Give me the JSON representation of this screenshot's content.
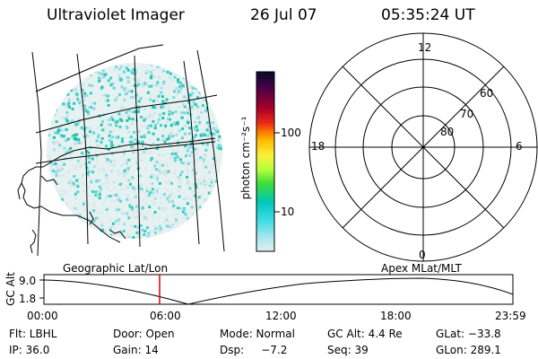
{
  "header": {
    "title": "Ultraviolet Imager",
    "date": "26 Jul 07",
    "time": "05:35:24 UT"
  },
  "colorbar": {
    "unit_label": "photon cm⁻²s⁻¹",
    "ticks": [
      "100",
      "10"
    ]
  },
  "polar_plot": {
    "mlt_labels": {
      "top": "12",
      "left": "18",
      "right": "6",
      "bottom": "0"
    },
    "lat_labels": [
      "60",
      "70",
      "80"
    ]
  },
  "timeline": {
    "left_label": "Geographic Lat/Lon",
    "right_label": "Apex MLat/MLT",
    "axis_label": "GC Alt",
    "y_ticks": [
      "9.0",
      "1.8"
    ],
    "x_ticks": [
      "00:00",
      "06:00",
      "12:00",
      "18:00",
      "23:59"
    ],
    "marker_color": "#dd0000"
  },
  "info": {
    "filter": "Flt: LBHL",
    "door": "Door: Open",
    "mode": "Mode: Normal",
    "gc_alt": "GC Alt: 4.4 Re",
    "glat": "GLat: −33.8",
    "ip": "IP: 36.0",
    "gain": "Gain: 14",
    "dsp": "Dsp:     −7.2",
    "seq": "Seq: 39",
    "glon": "GLon: 289.1"
  }
}
